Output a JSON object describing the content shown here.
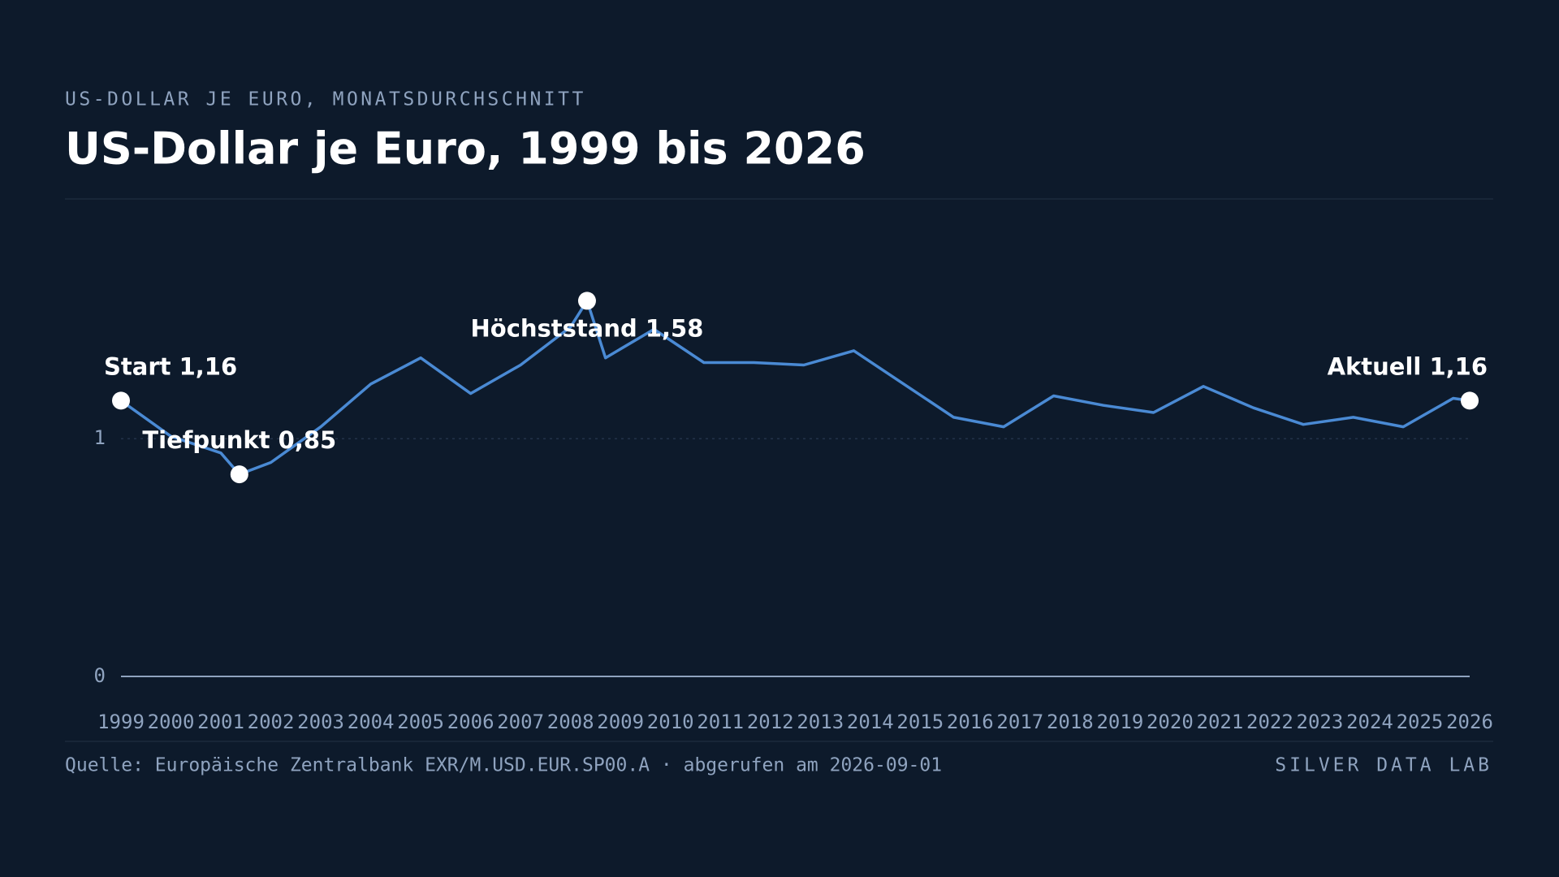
{
  "chart_data": {
    "type": "line",
    "kicker": "US-DOLLAR JE EURO, MONATSDURCHSCHNITT",
    "title": "US-Dollar je Euro, 1999 bis 2026",
    "source": "Quelle: Europäische Zentralbank EXR/M.USD.EUR.SP00.A · abgerufen am 2026-09-01",
    "brand": "SILVER DATA LAB",
    "series": [
      {
        "name": "US-Dollar je Euro",
        "color": "#4a8ad4",
        "x": [
          1999.0,
          2000.0,
          2001.0,
          2001.37,
          2002.0,
          2003.0,
          2004.0,
          2005.0,
          2006.0,
          2007.0,
          2008.0,
          2008.33,
          2008.7,
          2009.67,
          2010.67,
          2011.67,
          2012.67,
          2013.67,
          2014.67,
          2015.67,
          2016.67,
          2017.67,
          2018.67,
          2019.67,
          2020.67,
          2021.67,
          2022.67,
          2023.67,
          2024.67,
          2025.67,
          2026.0
        ],
        "values": [
          1.16,
          1.01,
          0.94,
          0.85,
          0.9,
          1.05,
          1.23,
          1.34,
          1.19,
          1.31,
          1.47,
          1.58,
          1.34,
          1.46,
          1.32,
          1.32,
          1.31,
          1.37,
          1.23,
          1.09,
          1.05,
          1.18,
          1.14,
          1.11,
          1.22,
          1.13,
          1.06,
          1.09,
          1.05,
          1.17,
          1.16
        ]
      }
    ],
    "annotations": [
      {
        "label": "Start 1,16",
        "x": 1999.0,
        "y": 1.16
      },
      {
        "label": "Tiefpunkt 0,85",
        "x": 2001.37,
        "y": 0.85
      },
      {
        "label": "Höchststand 1,58",
        "x": 2008.33,
        "y": 1.58
      },
      {
        "label": "Aktuell 1,16",
        "x": 2026.0,
        "y": 1.16
      }
    ],
    "xlim": [
      1999,
      2026
    ],
    "xticks": [
      1999,
      2000,
      2001,
      2002,
      2003,
      2004,
      2005,
      2006,
      2007,
      2008,
      2009,
      2010,
      2011,
      2012,
      2013,
      2014,
      2015,
      2016,
      2017,
      2018,
      2019,
      2020,
      2021,
      2022,
      2023,
      2024,
      2025,
      2026
    ],
    "ylim": [
      0,
      1.8
    ],
    "yticks": [
      0,
      1
    ],
    "grid": true
  }
}
